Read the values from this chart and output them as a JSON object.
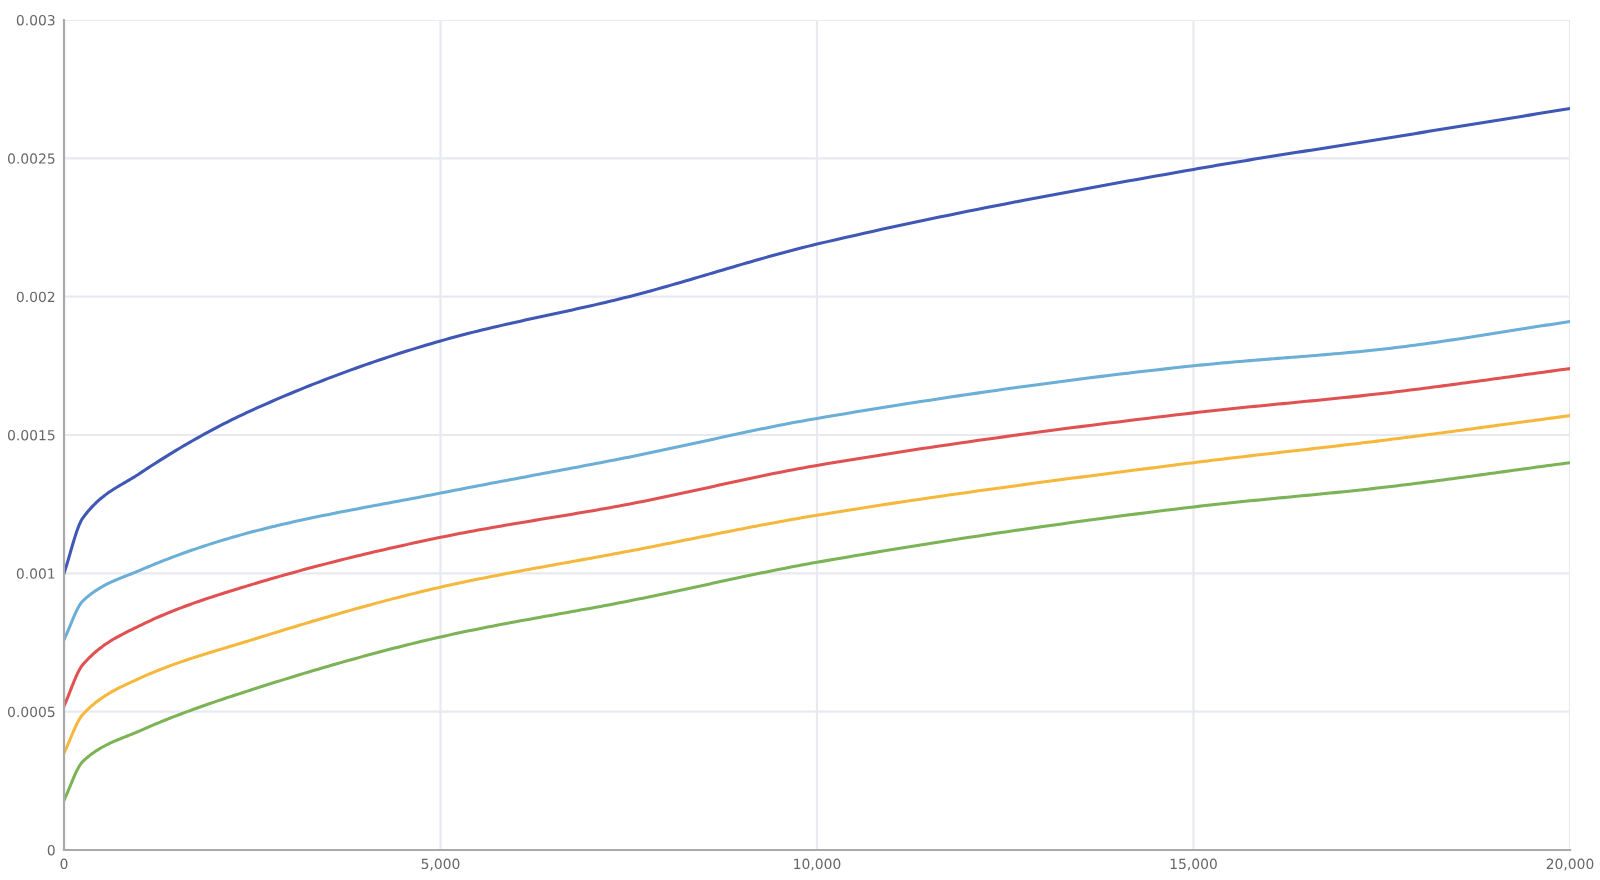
{
  "chart_data": {
    "type": "line",
    "x": [
      0,
      250,
      1000,
      2500,
      5000,
      7500,
      10000,
      15000,
      17500,
      20000
    ],
    "series": [
      {
        "color": "#3f57b5",
        "values": [
          0.001,
          0.0012,
          0.00136,
          0.00159,
          0.00184,
          0.002,
          0.00219,
          0.00246,
          0.00257,
          0.00268
        ]
      },
      {
        "color": "#6baed6",
        "values": [
          0.00076,
          0.0009,
          0.00101,
          0.00115,
          0.00129,
          0.00142,
          0.00156,
          0.00175,
          0.00181,
          0.00191
        ]
      },
      {
        "color": "#e05252",
        "values": [
          0.00052,
          0.00067,
          0.00081,
          0.00096,
          0.00113,
          0.00125,
          0.00139,
          0.00158,
          0.00165,
          0.00174
        ]
      },
      {
        "color": "#f5b83d",
        "values": [
          0.00035,
          0.00049,
          0.00062,
          0.00076,
          0.00095,
          0.00108,
          0.00121,
          0.0014,
          0.00148,
          0.00157
        ]
      },
      {
        "color": "#7cb356",
        "values": [
          0.00018,
          0.00032,
          0.00043,
          0.00058,
          0.00077,
          0.0009,
          0.00104,
          0.00124,
          0.00131,
          0.0014
        ]
      }
    ],
    "xlim": [
      0,
      20000
    ],
    "xticks": [
      0,
      {
        "value": 5000,
        "label": "5,000"
      },
      {
        "value": 10000,
        "label": "10,000"
      },
      {
        "value": 15000,
        "label": "15,000"
      },
      {
        "value": 20000,
        "label": "20,000"
      }
    ],
    "ylim": [
      0,
      0.003
    ],
    "yticks": [
      0,
      0.0005,
      0.001,
      0.0015,
      0.002,
      0.0025,
      0.003
    ],
    "grid": true
  }
}
